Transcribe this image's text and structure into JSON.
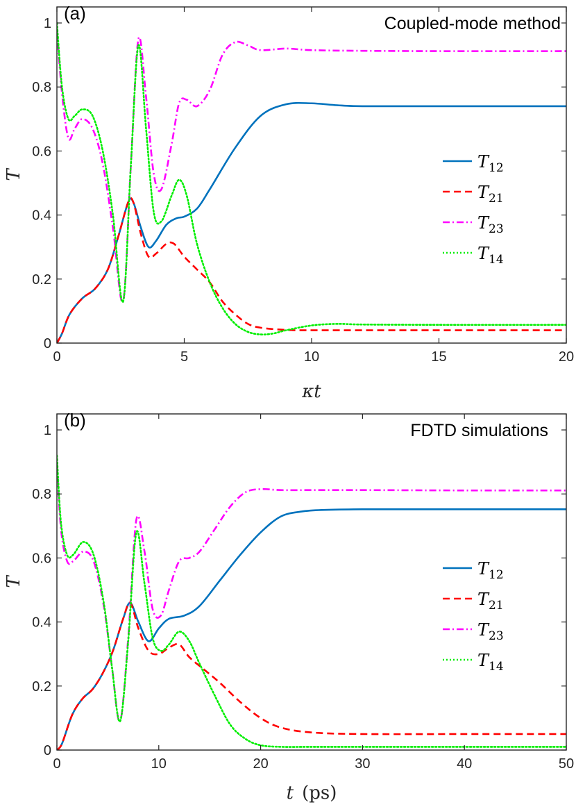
{
  "chart_data": [
    {
      "type": "line",
      "panel_label": "(a)",
      "method_label": "Coupled-mode method",
      "xlabel": "κt",
      "ylabel": "T",
      "xlim": [
        0,
        20
      ],
      "ylim": [
        0,
        1.05
      ],
      "xticks": [
        0,
        5,
        10,
        15,
        20
      ],
      "yticks": [
        0,
        0.2,
        0.4,
        0.6,
        0.8,
        1
      ],
      "xtick_labels": [
        "0",
        "5",
        "10",
        "15",
        "20"
      ],
      "ytick_labels": [
        "0",
        "0.2",
        "0.4",
        "0.6",
        "0.8",
        "1"
      ],
      "grid": false,
      "legend_position": "right",
      "series": [
        {
          "name": "T",
          "sub": "12",
          "color": "#0072BD",
          "dash": "solid",
          "x": [
            0,
            0.2,
            0.5,
            1.0,
            1.5,
            2.0,
            2.4,
            2.8,
            3.0,
            3.3,
            3.6,
            3.9,
            4.3,
            4.7,
            5.0,
            5.5,
            6.0,
            7.0,
            8.0,
            9.0,
            10.0,
            11.0,
            12.0,
            15.0,
            20.0
          ],
          "y": [
            0.0,
            0.03,
            0.09,
            0.14,
            0.17,
            0.23,
            0.33,
            0.44,
            0.44,
            0.36,
            0.3,
            0.32,
            0.37,
            0.39,
            0.395,
            0.42,
            0.48,
            0.61,
            0.71,
            0.746,
            0.749,
            0.743,
            0.74,
            0.74,
            0.74
          ]
        },
        {
          "name": "T",
          "sub": "21",
          "color": "#FF0000",
          "dash": "dashed",
          "x": [
            0,
            0.2,
            0.5,
            1.0,
            1.5,
            2.0,
            2.4,
            2.8,
            3.0,
            3.3,
            3.6,
            3.9,
            4.3,
            4.6,
            5.0,
            5.5,
            6.0,
            6.5,
            7.0,
            7.5,
            8.0,
            9.0,
            10.0,
            12.0,
            15.0,
            20.0
          ],
          "y": [
            0.0,
            0.03,
            0.09,
            0.14,
            0.17,
            0.23,
            0.33,
            0.44,
            0.44,
            0.34,
            0.27,
            0.28,
            0.31,
            0.31,
            0.27,
            0.23,
            0.19,
            0.13,
            0.09,
            0.06,
            0.048,
            0.041,
            0.04,
            0.04,
            0.04,
            0.04
          ]
        },
        {
          "name": "T",
          "sub": "23",
          "color": "#FF00FF",
          "dash": "dashdot",
          "x": [
            0,
            0.2,
            0.45,
            0.7,
            1.0,
            1.4,
            1.8,
            2.2,
            2.6,
            2.9,
            3.2,
            3.5,
            3.8,
            4.1,
            4.5,
            4.8,
            5.1,
            5.5,
            6.0,
            6.5,
            7.0,
            7.5,
            8.0,
            9.0,
            10.0,
            12.0,
            15.0,
            20.0
          ],
          "y": [
            0.98,
            0.78,
            0.64,
            0.67,
            0.7,
            0.67,
            0.56,
            0.36,
            0.13,
            0.55,
            0.95,
            0.77,
            0.53,
            0.48,
            0.62,
            0.75,
            0.76,
            0.74,
            0.79,
            0.9,
            0.94,
            0.93,
            0.915,
            0.92,
            0.915,
            0.913,
            0.912,
            0.912
          ]
        },
        {
          "name": "T",
          "sub": "14",
          "color": "#00EE00",
          "dash": "dotted",
          "x": [
            0,
            0.2,
            0.45,
            0.7,
            1.0,
            1.4,
            1.8,
            2.2,
            2.6,
            2.9,
            3.2,
            3.5,
            3.8,
            4.1,
            4.5,
            4.8,
            5.1,
            5.5,
            6.0,
            6.5,
            7.0,
            7.5,
            8.0,
            8.5,
            9.0,
            10.0,
            11.0,
            12.0,
            15.0,
            20.0
          ],
          "y": [
            1.0,
            0.8,
            0.7,
            0.71,
            0.73,
            0.71,
            0.6,
            0.4,
            0.13,
            0.55,
            0.93,
            0.67,
            0.41,
            0.38,
            0.46,
            0.51,
            0.46,
            0.31,
            0.19,
            0.11,
            0.06,
            0.035,
            0.027,
            0.03,
            0.04,
            0.055,
            0.06,
            0.058,
            0.057,
            0.057
          ]
        }
      ]
    },
    {
      "type": "line",
      "panel_label": "(b)",
      "method_label": "FDTD simulations",
      "xlabel": "t",
      "xlabel_unit": "(ps)",
      "ylabel": "T",
      "xlim": [
        0,
        50
      ],
      "ylim": [
        0,
        1.05
      ],
      "xticks": [
        0,
        10,
        20,
        30,
        40,
        50
      ],
      "yticks": [
        0,
        0.2,
        0.4,
        0.6,
        0.8,
        1
      ],
      "xtick_labels": [
        "0",
        "10",
        "20",
        "30",
        "40",
        "50"
      ],
      "ytick_labels": [
        "0",
        "0.2",
        "0.4",
        "0.6",
        "0.8",
        "1"
      ],
      "grid": false,
      "legend_position": "right",
      "series": [
        {
          "name": "T",
          "sub": "12",
          "color": "#0072BD",
          "dash": "solid",
          "x": [
            0,
            0.5,
            1.5,
            2.5,
            3.5,
            4.5,
            5.5,
            6.5,
            7.2,
            8.0,
            9.0,
            10.0,
            11.0,
            12.5,
            14.0,
            16.0,
            18.0,
            20.0,
            22.0,
            24.0,
            26.0,
            30.0,
            40.0,
            50.0
          ],
          "y": [
            0.0,
            0.02,
            0.11,
            0.16,
            0.19,
            0.24,
            0.31,
            0.41,
            0.46,
            0.4,
            0.34,
            0.38,
            0.41,
            0.42,
            0.45,
            0.53,
            0.61,
            0.68,
            0.73,
            0.745,
            0.75,
            0.752,
            0.752,
            0.752
          ]
        },
        {
          "name": "T",
          "sub": "21",
          "color": "#FF0000",
          "dash": "dashed",
          "x": [
            0,
            0.5,
            1.5,
            2.5,
            3.5,
            4.5,
            5.5,
            6.5,
            7.2,
            8.0,
            9.0,
            10.0,
            11.0,
            12.0,
            13.0,
            14.5,
            16.0,
            18.0,
            20.0,
            22.0,
            25.0,
            30.0,
            40.0,
            50.0
          ],
          "y": [
            0.0,
            0.02,
            0.11,
            0.16,
            0.19,
            0.24,
            0.31,
            0.41,
            0.46,
            0.38,
            0.31,
            0.3,
            0.32,
            0.33,
            0.29,
            0.25,
            0.21,
            0.15,
            0.1,
            0.07,
            0.055,
            0.05,
            0.05,
            0.05
          ]
        },
        {
          "name": "T",
          "sub": "23",
          "color": "#FF00FF",
          "dash": "dashdot",
          "x": [
            0,
            0.4,
            1.0,
            1.6,
            2.6,
            3.6,
            4.6,
            5.4,
            6.2,
            7.0,
            7.8,
            8.6,
            9.4,
            10.2,
            11.0,
            12.0,
            13.0,
            14.0,
            15.5,
            17.0,
            18.5,
            20.0,
            22.0,
            25.0,
            30.0,
            40.0,
            50.0
          ],
          "y": [
            0.9,
            0.69,
            0.59,
            0.59,
            0.62,
            0.59,
            0.45,
            0.26,
            0.09,
            0.35,
            0.72,
            0.62,
            0.44,
            0.42,
            0.5,
            0.59,
            0.6,
            0.62,
            0.69,
            0.76,
            0.805,
            0.815,
            0.812,
            0.812,
            0.812,
            0.811,
            0.811
          ]
        },
        {
          "name": "T",
          "sub": "14",
          "color": "#00EE00",
          "dash": "dotted",
          "x": [
            0,
            0.4,
            1.0,
            1.6,
            2.6,
            3.6,
            4.6,
            5.4,
            6.2,
            7.0,
            7.8,
            8.6,
            9.4,
            10.2,
            11.0,
            12.0,
            13.0,
            14.0,
            15.5,
            17.0,
            18.5,
            20.0,
            22.0,
            25.0,
            30.0,
            40.0,
            50.0
          ],
          "y": [
            0.92,
            0.71,
            0.61,
            0.61,
            0.65,
            0.61,
            0.46,
            0.26,
            0.09,
            0.34,
            0.68,
            0.52,
            0.35,
            0.31,
            0.33,
            0.37,
            0.34,
            0.27,
            0.17,
            0.08,
            0.035,
            0.015,
            0.01,
            0.01,
            0.01,
            0.01,
            0.01
          ]
        }
      ]
    }
  ]
}
